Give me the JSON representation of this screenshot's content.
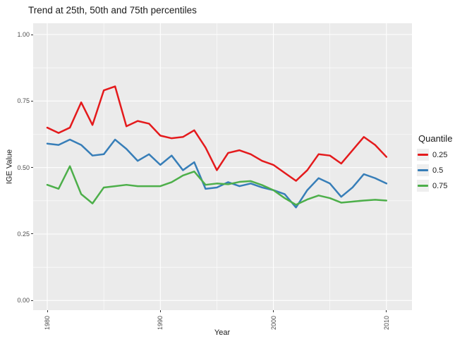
{
  "title": "Trend at 25th, 50th and 75th percentiles",
  "y_axis": {
    "label": "IGE Value",
    "tick_labels": [
      "0.00",
      "0.25",
      "0.50",
      "0.75",
      "1.00"
    ],
    "tick_values": [
      0,
      0.25,
      0.5,
      0.75,
      1.0
    ]
  },
  "x_axis": {
    "label": "Year",
    "tick_labels": [
      "1980",
      "1990",
      "2000",
      "2010"
    ],
    "tick_values": [
      1980,
      1990,
      2000,
      2010
    ]
  },
  "legend": {
    "title": "Quantile",
    "items": [
      {
        "label": "0.25",
        "color": "#E41A1C"
      },
      {
        "label": "0.5",
        "color": "#377EB8"
      },
      {
        "label": "0.75",
        "color": "#4DAF4A"
      }
    ]
  },
  "style": {
    "panel_bg": "#ebebeb",
    "grid_color": "#ffffff",
    "tick_color": "#333333",
    "axis_text_color": "#4d4d4d",
    "line_width": 2.5
  },
  "chart_data": {
    "type": "line",
    "title": "Trend at 25th, 50th and 75th percentiles",
    "xlabel": "Year",
    "ylabel": "IGE Value",
    "x_range": [
      1980,
      2010
    ],
    "ylim": [
      0,
      1.0
    ],
    "y_major_gridlines": [
      0,
      0.25,
      0.5,
      0.75,
      1.0
    ],
    "y_minor_gridlines": [
      0.125,
      0.375,
      0.625,
      0.875
    ],
    "x_major_gridlines": [
      1980,
      1990,
      2000,
      2010
    ],
    "x_minor_gridlines": [
      1985,
      1995,
      2005
    ],
    "legend_position": "right",
    "x": [
      1980,
      1981,
      1982,
      1983,
      1984,
      1985,
      1986,
      1987,
      1988,
      1989,
      1990,
      1991,
      1992,
      1993,
      1994,
      1995,
      1996,
      1997,
      1998,
      1999,
      2000,
      2001,
      2002,
      2003,
      2004,
      2005,
      2006,
      2007,
      2008,
      2009,
      2010
    ],
    "series": [
      {
        "name": "0.25",
        "color": "#E41A1C",
        "values": [
          0.65,
          0.63,
          0.65,
          0.745,
          0.66,
          0.79,
          0.805,
          0.655,
          0.675,
          0.665,
          0.62,
          0.61,
          0.615,
          0.64,
          0.575,
          0.49,
          0.555,
          0.565,
          0.55,
          0.525,
          0.51,
          0.48,
          0.45,
          0.49,
          0.55,
          0.545,
          0.515,
          0.565,
          0.615,
          0.585,
          0.54
        ]
      },
      {
        "name": "0.5",
        "color": "#377EB8",
        "values": [
          0.59,
          0.585,
          0.605,
          0.585,
          0.545,
          0.55,
          0.605,
          0.57,
          0.525,
          0.55,
          0.51,
          0.545,
          0.49,
          0.52,
          0.42,
          0.425,
          0.445,
          0.43,
          0.44,
          0.425,
          0.415,
          0.4,
          0.35,
          0.415,
          0.46,
          0.44,
          0.39,
          0.425,
          0.475,
          0.46,
          0.44
        ]
      },
      {
        "name": "0.75",
        "color": "#4DAF4A",
        "values": [
          0.435,
          0.42,
          0.505,
          0.4,
          0.365,
          0.425,
          0.43,
          0.435,
          0.43,
          0.43,
          0.43,
          0.445,
          0.47,
          0.485,
          0.435,
          0.44,
          0.437,
          0.446,
          0.449,
          0.434,
          0.415,
          0.385,
          0.36,
          0.38,
          0.395,
          0.385,
          0.368,
          0.372,
          0.376,
          0.379,
          0.376
        ]
      }
    ]
  }
}
